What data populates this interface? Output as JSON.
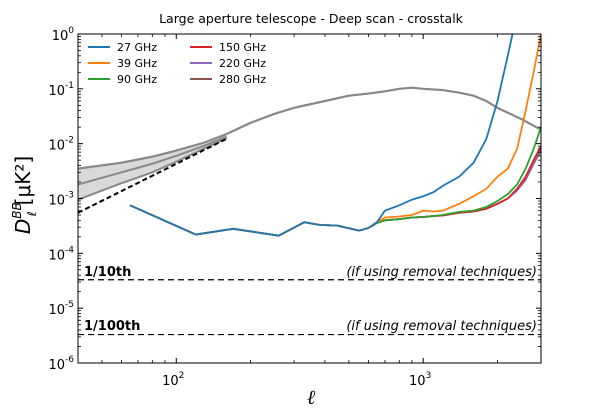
{
  "chart_data": {
    "type": "line",
    "title": "Large aperture telescope - Deep scan - crosstalk",
    "xlabel": "ℓ",
    "ylabel_main": "D",
    "ylabel_sub": "ℓ",
    "ylabel_sup": "BB",
    "ylabel_units": "[μK²]",
    "x_scale": "log",
    "y_scale": "log",
    "xlim": [
      40,
      3000
    ],
    "ylim": [
      1e-06,
      1
    ],
    "x_ticks": [
      {
        "value": 100,
        "base": "10",
        "exp": "2"
      },
      {
        "value": 1000,
        "base": "10",
        "exp": "3"
      }
    ],
    "y_ticks": [
      {
        "value": 1e-06,
        "base": "10",
        "exp": "-6"
      },
      {
        "value": 1e-05,
        "base": "10",
        "exp": "-5"
      },
      {
        "value": 0.0001,
        "base": "10",
        "exp": "-4"
      },
      {
        "value": 0.001,
        "base": "10",
        "exp": "-3"
      },
      {
        "value": 0.01,
        "base": "10",
        "exp": "-2"
      },
      {
        "value": 0.1,
        "base": "10",
        "exp": "-1"
      },
      {
        "value": 1,
        "base": "10",
        "exp": "0"
      }
    ],
    "grid": false,
    "legend_position": "top-left",
    "series": [
      {
        "name": "27 GHz",
        "color": "#1f77b4",
        "x": [
          65,
          120,
          170,
          260,
          330,
          380,
          450,
          550,
          600,
          650,
          700,
          800,
          900,
          1000,
          1100,
          1200,
          1400,
          1600,
          1800,
          2000,
          2200,
          2300
        ],
        "y": [
          0.00075,
          0.00022,
          0.00028,
          0.00021,
          0.00037,
          0.00033,
          0.00032,
          0.00026,
          0.00029,
          0.00037,
          0.0006,
          0.00075,
          0.00095,
          0.0011,
          0.0013,
          0.0017,
          0.0025,
          0.0045,
          0.012,
          0.06,
          0.4,
          1.0
        ]
      },
      {
        "name": "39 GHz",
        "color": "#ff7f0e",
        "x": [
          65,
          120,
          170,
          260,
          330,
          380,
          450,
          550,
          600,
          650,
          700,
          800,
          900,
          1000,
          1100,
          1200,
          1400,
          1600,
          1800,
          2000,
          2200,
          2400,
          2600,
          2800,
          3000
        ],
        "y": [
          0.00075,
          0.00022,
          0.00028,
          0.00021,
          0.00037,
          0.00033,
          0.00032,
          0.00026,
          0.00029,
          0.00037,
          0.00045,
          0.00047,
          0.0005,
          0.0006,
          0.00058,
          0.0006,
          0.0008,
          0.0011,
          0.0015,
          0.0025,
          0.0035,
          0.008,
          0.04,
          0.2,
          1.0
        ]
      },
      {
        "name": "90 GHz",
        "color": "#2ca02c",
        "x": [
          65,
          120,
          170,
          260,
          330,
          380,
          450,
          550,
          600,
          650,
          700,
          800,
          900,
          1000,
          1100,
          1200,
          1400,
          1600,
          1800,
          2000,
          2200,
          2400,
          2600,
          2800,
          3000
        ],
        "y": [
          0.00075,
          0.00022,
          0.00028,
          0.00021,
          0.00037,
          0.00033,
          0.00032,
          0.00026,
          0.00029,
          0.00036,
          0.0004,
          0.00042,
          0.00045,
          0.00046,
          0.00048,
          0.0005,
          0.00057,
          0.0006,
          0.0007,
          0.0009,
          0.0012,
          0.0018,
          0.0035,
          0.008,
          0.02
        ]
      },
      {
        "name": "150 GHz",
        "color": "#d62728",
        "x": [
          65,
          120,
          170,
          260,
          330,
          380,
          450,
          550,
          600,
          650,
          700,
          800,
          900,
          1000,
          1100,
          1200,
          1400,
          1600,
          1800,
          2000,
          2200,
          2400,
          2600,
          2800,
          3000
        ],
        "y": [
          0.00075,
          0.00022,
          0.00028,
          0.00021,
          0.00037,
          0.00033,
          0.00032,
          0.00026,
          0.00029,
          0.00036,
          0.0004,
          0.00042,
          0.00045,
          0.00046,
          0.00048,
          0.00049,
          0.00055,
          0.00058,
          0.00065,
          0.0008,
          0.001,
          0.0015,
          0.0025,
          0.005,
          0.009
        ]
      },
      {
        "name": "220 GHz",
        "color": "#9467bd",
        "x": [
          65,
          120,
          170,
          260,
          330,
          380,
          450,
          550,
          600,
          650,
          700,
          800,
          900,
          1000,
          1100,
          1200,
          1400,
          1600,
          1800,
          2000,
          2200,
          2400,
          2600,
          2800,
          3000
        ],
        "y": [
          0.00075,
          0.00022,
          0.00028,
          0.00021,
          0.00037,
          0.00033,
          0.00032,
          0.00026,
          0.00029,
          0.00036,
          0.0004,
          0.00042,
          0.00045,
          0.00046,
          0.00048,
          0.00049,
          0.00055,
          0.00058,
          0.00065,
          0.0008,
          0.001,
          0.0014,
          0.0023,
          0.0045,
          0.008
        ]
      },
      {
        "name": "280 GHz",
        "color": "#8c564b",
        "x": [
          65,
          120,
          170,
          260,
          330,
          380,
          450,
          550,
          600,
          650,
          700,
          800,
          900,
          1000,
          1100,
          1200,
          1400,
          1600,
          1800,
          2000,
          2200,
          2400,
          2600,
          2800,
          3000
        ],
        "y": [
          0.00075,
          0.00022,
          0.00028,
          0.00021,
          0.00037,
          0.00033,
          0.00032,
          0.00026,
          0.00029,
          0.00036,
          0.0004,
          0.00042,
          0.00045,
          0.00046,
          0.00048,
          0.00049,
          0.00055,
          0.00058,
          0.00065,
          0.0008,
          0.001,
          0.0014,
          0.0022,
          0.0043,
          0.0075
        ]
      }
    ],
    "model_curves": {
      "color": "#888888",
      "total_bb": {
        "x": [
          40,
          60,
          80,
          100,
          130,
          160,
          200,
          250,
          300,
          400,
          500,
          600,
          700,
          800,
          900,
          1000,
          1200,
          1400,
          1600,
          1800,
          2000,
          2500,
          3000
        ],
        "y": [
          0.0035,
          0.0045,
          0.0058,
          0.0075,
          0.0105,
          0.015,
          0.024,
          0.035,
          0.045,
          0.06,
          0.075,
          0.082,
          0.09,
          0.1,
          0.105,
          0.1,
          0.095,
          0.085,
          0.075,
          0.06,
          0.045,
          0.028,
          0.018
        ]
      },
      "band_upper": {
        "x": [
          40,
          60,
          80,
          100,
          130,
          160
        ],
        "y": [
          0.0035,
          0.0045,
          0.0058,
          0.0075,
          0.0105,
          0.015
        ]
      },
      "band_middle": {
        "x": [
          40,
          60,
          80,
          100,
          130,
          160
        ],
        "y": [
          0.0018,
          0.003,
          0.0043,
          0.006,
          0.0092,
          0.0135
        ]
      },
      "band_lower": {
        "x": [
          40,
          60,
          80,
          100,
          130,
          160
        ],
        "y": [
          0.00095,
          0.0019,
          0.003,
          0.0047,
          0.0082,
          0.0125
        ]
      },
      "lensing_dashed": {
        "x": [
          40,
          160
        ],
        "y": [
          0.00055,
          0.0123
        ]
      }
    },
    "reference_lines": [
      {
        "y": 3.3e-05,
        "label": "1/10th",
        "note": "(if using removal techniques)"
      },
      {
        "y": 3.3e-06,
        "label": "1/100th",
        "note": "(if using removal techniques)"
      }
    ]
  }
}
